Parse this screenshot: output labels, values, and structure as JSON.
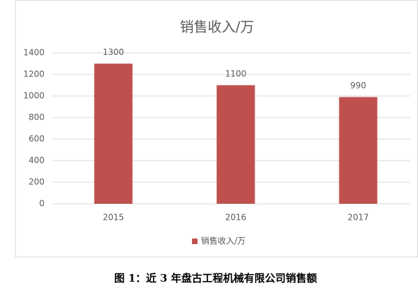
{
  "chart_data": {
    "type": "bar",
    "title": "销售收入/万",
    "categories": [
      "2015",
      "2016",
      "2017"
    ],
    "series": [
      {
        "name": "销售收入/万",
        "color": "#c0504d",
        "values": [
          1300,
          1100,
          990
        ]
      }
    ],
    "ylim": [
      0,
      1400
    ],
    "yticks": [
      0,
      200,
      400,
      600,
      800,
      1000,
      1200,
      1400
    ],
    "grid": true,
    "legend": "bottom"
  },
  "caption": "图 1：近 3 年盘古工程机械有限公司销售额"
}
